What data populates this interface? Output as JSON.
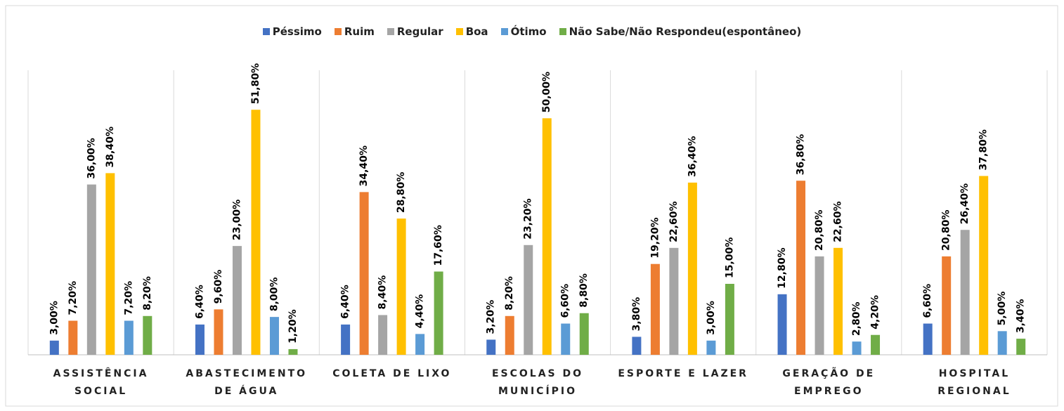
{
  "chart_data": {
    "type": "bar",
    "categories": [
      "ASSISTÊNCIA\nSOCIAL",
      "ABASTECIMENTO\nDE ÁGUA",
      "COLETA DE LIXO",
      "ESCOLAS DO\nMUNICÍPIO",
      "ESPORTE E LAZER",
      "GERAÇÃO DE\nEMPREGO",
      "HOSPITAL\nREGIONAL"
    ],
    "series": [
      {
        "name": "Péssimo",
        "color": "#4472c4",
        "values": [
          3.0,
          6.4,
          6.4,
          3.2,
          3.8,
          12.8,
          6.6
        ],
        "value_labels": [
          "3,00%",
          "6,40%",
          "6,40%",
          "3,20%",
          "3,80%",
          "12,80%",
          "6,60%"
        ]
      },
      {
        "name": "Ruim",
        "color": "#ed7d31",
        "values": [
          7.2,
          9.6,
          34.4,
          8.2,
          19.2,
          36.8,
          20.8
        ],
        "value_labels": [
          "7,20%",
          "9,60%",
          "34,40%",
          "8,20%",
          "19,20%",
          "36,80%",
          "20,80%"
        ]
      },
      {
        "name": "Regular",
        "color": "#a5a5a5",
        "values": [
          36.0,
          23.0,
          8.4,
          23.2,
          22.6,
          20.8,
          26.4
        ],
        "value_labels": [
          "36,00%",
          "23,00%",
          "8,40%",
          "23,20%",
          "22,60%",
          "20,80%",
          "26,40%"
        ]
      },
      {
        "name": "Boa",
        "color": "#ffc000",
        "values": [
          38.4,
          51.8,
          28.8,
          50.0,
          36.4,
          22.6,
          37.8
        ],
        "value_labels": [
          "38,40%",
          "51,80%",
          "28,80%",
          "50,00%",
          "36,40%",
          "22,60%",
          "37,80%"
        ]
      },
      {
        "name": "Ótimo",
        "color": "#5b9bd5",
        "values": [
          7.2,
          8.0,
          4.4,
          6.6,
          3.0,
          2.8,
          5.0
        ],
        "value_labels": [
          "7,20%",
          "8,00%",
          "4,40%",
          "6,60%",
          "3,00%",
          "2,80%",
          "5,00%"
        ]
      },
      {
        "name": "Não Sabe/Não Respondeu(espontâneo)",
        "color": "#70ad47",
        "values": [
          8.2,
          1.2,
          17.6,
          8.8,
          15.0,
          4.2,
          3.4
        ],
        "value_labels": [
          "8,20%",
          "1,20%",
          "17,60%",
          "8,80%",
          "15,00%",
          "4,20%",
          "3,40%"
        ]
      }
    ],
    "ylim": [
      0,
      60
    ],
    "legend": "top"
  }
}
